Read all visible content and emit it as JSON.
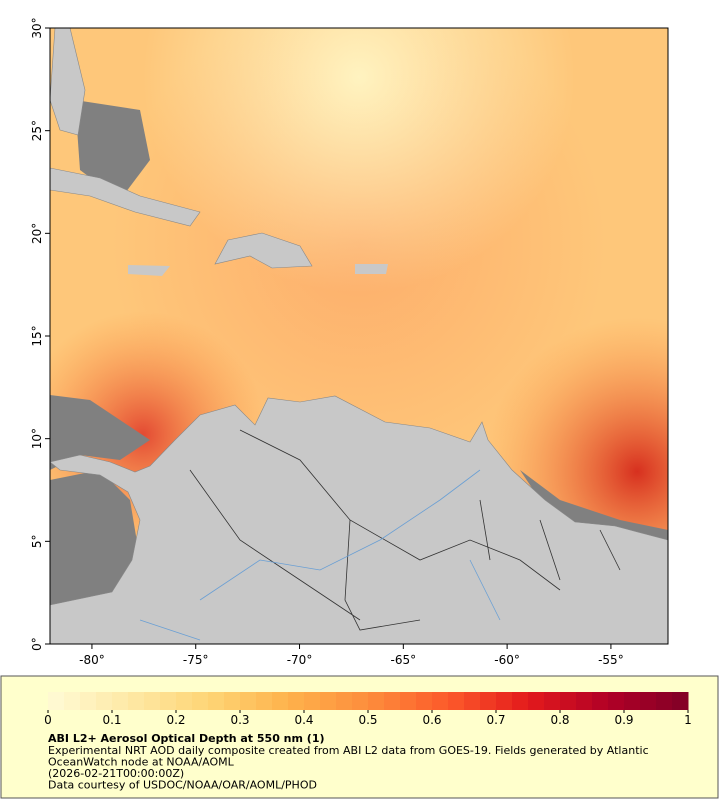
{
  "map": {
    "xlim": [
      -82.02,
      -52.25
    ],
    "ylim": [
      0,
      30
    ],
    "xticks": [
      {
        "value": -80,
        "label": "-80°"
      },
      {
        "value": -75,
        "label": "-75°"
      },
      {
        "value": -70,
        "label": "-70°"
      },
      {
        "value": -65,
        "label": "-65°"
      },
      {
        "value": -60,
        "label": "-60°"
      },
      {
        "value": -55,
        "label": "-55°"
      }
    ],
    "yticks": [
      {
        "value": 0,
        "label": "0°"
      },
      {
        "value": 5,
        "label": "5°"
      },
      {
        "value": 10,
        "label": "10°"
      },
      {
        "value": 15,
        "label": "15°"
      },
      {
        "value": 20,
        "label": "20°"
      },
      {
        "value": 25,
        "label": "25°"
      },
      {
        "value": 30,
        "label": "30°"
      }
    ]
  },
  "colorbar": {
    "title": "ABI L2+ Aerosol Optical Depth at 550 nm (1)",
    "lim": [
      0,
      1
    ],
    "ticks": [
      0,
      0.1,
      0.2,
      0.3,
      0.4,
      0.5,
      0.6,
      0.7,
      0.8,
      0.9,
      1
    ],
    "colors": [
      "#fffbd6",
      "#fee9a6",
      "#fed576",
      "#feb24c",
      "#fd8d3c",
      "#fc5a2a",
      "#e31a1c",
      "#b10026",
      "#800026"
    ]
  },
  "caption": {
    "lines": [
      "Experimental NRT AOD daily composite created from ABI L2 data from GOES-19. Fields generated by Atlantic",
      "OceanWatch node at NOAA/AOML",
      "(2026-02-21T00:00:00Z)",
      "Data courtesy of USDOC/NOAA/OAR/AOML/PHOD"
    ]
  }
}
